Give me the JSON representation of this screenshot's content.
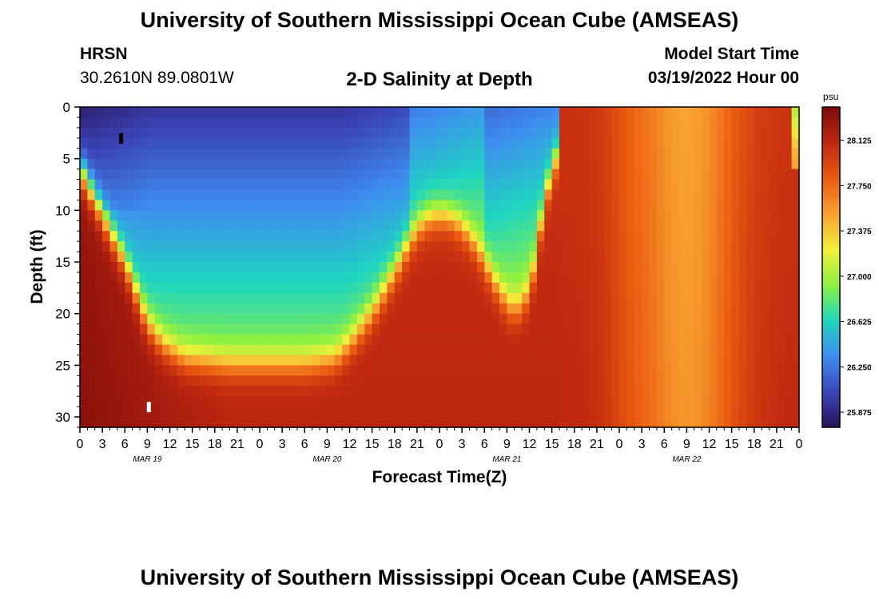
{
  "header": {
    "title": "University of Southern Mississippi Ocean Cube (AMSEAS)",
    "station": "HRSN",
    "coords": "30.2610N  89.0801W",
    "plot_title": "2-D Salinity at Depth",
    "model_label": "Model Start Time",
    "model_time": "03/19/2022 Hour 00"
  },
  "footer": {
    "title": "University of Southern Mississippi Ocean Cube (AMSEAS)"
  },
  "chart_data": {
    "type": "heatmap",
    "title": "2-D Salinity at Depth",
    "xlabel": "Forecast Time(Z)",
    "ylabel": "Depth (ft)",
    "x_range_hours": [
      0,
      96
    ],
    "x_tick_step_hours": 3,
    "x_tick_labels": [
      "0",
      "3",
      "6",
      "9",
      "12",
      "15",
      "18",
      "21",
      "0",
      "3",
      "6",
      "9",
      "12",
      "15",
      "18",
      "21",
      "0",
      "3",
      "6",
      "9",
      "12",
      "15",
      "18",
      "21",
      "0",
      "3",
      "6",
      "9",
      "12",
      "15",
      "18",
      "21",
      "0"
    ],
    "date_labels": [
      {
        "hour": 9,
        "text": "MAR 19"
      },
      {
        "hour": 33,
        "text": "MAR 20"
      },
      {
        "hour": 57,
        "text": "MAR 21"
      },
      {
        "hour": 81,
        "text": "MAR 22"
      }
    ],
    "y_range_ft": [
      0,
      31
    ],
    "y_ticks": [
      "0",
      "5",
      "10",
      "15",
      "20",
      "25",
      "30"
    ],
    "colorbar": {
      "unit": "psu",
      "min": 25.75,
      "max": 28.4,
      "ticks": [
        "28.125",
        "27.750",
        "27.375",
        "27.000",
        "26.625",
        "26.250",
        "25.875"
      ],
      "colors": [
        "#2a1258",
        "#3b46ba",
        "#3e8ef0",
        "#1ed6c0",
        "#8cf040",
        "#f2f03a",
        "#f8a030",
        "#ea5a10",
        "#c02810",
        "#7a0a0a"
      ]
    },
    "markers": [
      {
        "hour": 5.5,
        "depth_ft": 3,
        "color": "#000000"
      },
      {
        "hour": 9.2,
        "depth_ft": 29,
        "color": "#ffffff"
      }
    ]
  }
}
